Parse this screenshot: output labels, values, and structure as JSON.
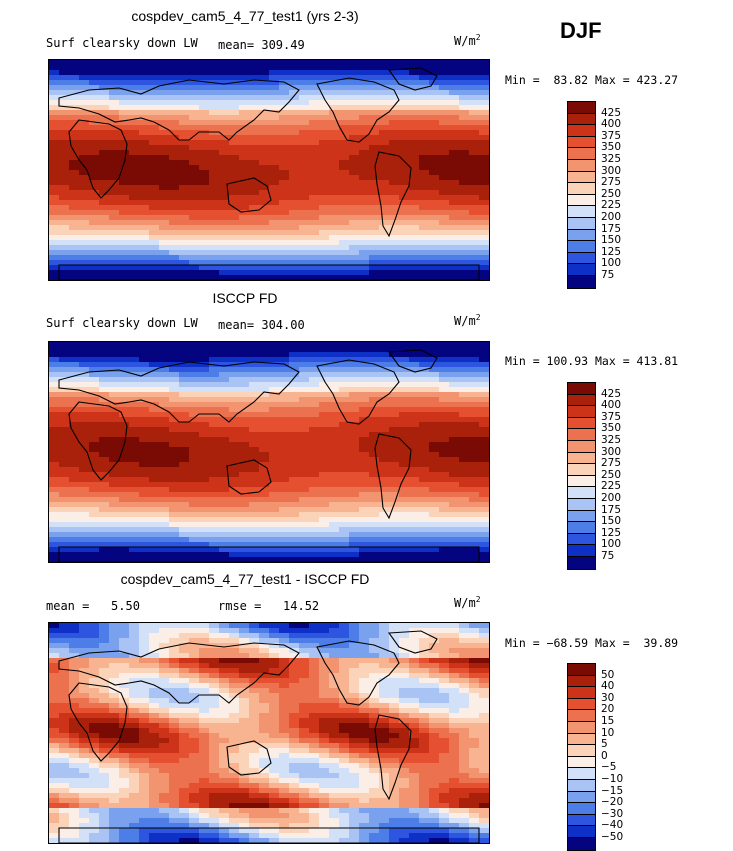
{
  "season": "DJF",
  "colors": {
    "abs_scale": [
      "#040481",
      "#0f30c6",
      "#2d55e0",
      "#4d7ee8",
      "#7aa1ee",
      "#a8c3f4",
      "#d2e1f8",
      "#fbeee6",
      "#fbd3b8",
      "#f8b491",
      "#f39470",
      "#ec724f",
      "#e45030",
      "#cc3318",
      "#a9200b",
      "#7a0a04"
    ],
    "diff_scale": [
      "#040481",
      "#0f30c6",
      "#2d55e0",
      "#4d7ee8",
      "#7aa1ee",
      "#a8c3f4",
      "#d2e1f8",
      "#fbeee6",
      "#fbd3b8",
      "#f8b491",
      "#f39470",
      "#ec724f",
      "#e45030",
      "#cc3318",
      "#a9200b",
      "#7a0a04"
    ]
  },
  "panels": [
    {
      "title": "cospdev_cam5_4_77_test1 (yrs 2-3)",
      "left_label": "Surf clearsky down LW",
      "mid_label": "mean= 309.49",
      "units_base": "W/m",
      "units_exp": "2",
      "stats": "Min =  83.82 Max = 423.27",
      "colorbar_labels": [
        "425",
        "400",
        "375",
        "350",
        "325",
        "300",
        "275",
        "250",
        "225",
        "200",
        "175",
        "150",
        "125",
        "100",
        "75"
      ],
      "field": "model"
    },
    {
      "title": "ISCCP FD",
      "left_label": "Surf clearsky down LW",
      "mid_label": "mean= 304.00",
      "units_base": "W/m",
      "units_exp": "2",
      "stats": "Min = 100.93 Max = 413.81",
      "colorbar_labels": [
        "425",
        "400",
        "375",
        "350",
        "325",
        "300",
        "275",
        "250",
        "225",
        "200",
        "175",
        "150",
        "125",
        "100",
        "75"
      ],
      "field": "obs"
    },
    {
      "title": "cospdev_cam5_4_77_test1 - ISCCP FD",
      "left_label": "mean =   5.50",
      "mid_label": "rmse =   14.52",
      "units_base": "W/m",
      "units_exp": "2",
      "stats": "Min = −68.59 Max =  39.89",
      "colorbar_labels": [
        "50",
        "40",
        "30",
        "20",
        "15",
        "10",
        "5",
        "0",
        "−5",
        "−10",
        "−15",
        "−20",
        "−30",
        "−40",
        "−50"
      ],
      "field": "diff"
    }
  ]
}
